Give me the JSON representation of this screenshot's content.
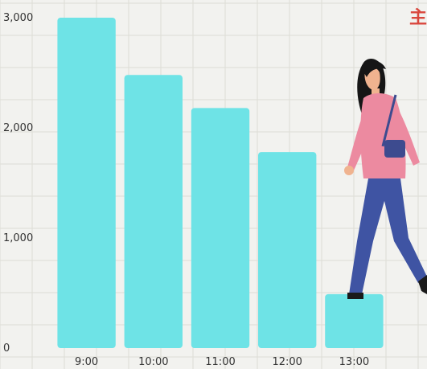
{
  "corner_text": "主",
  "colors": {
    "bar": "#6ee3e6",
    "grid": "#dcdcd6",
    "background": "#f2f2ef",
    "accent": "#d9473d"
  },
  "chart_data": {
    "type": "bar",
    "categories": [
      "9:00",
      "10:00",
      "11:00",
      "12:00",
      "13:00"
    ],
    "values": [
      3000,
      2480,
      2180,
      1780,
      490
    ],
    "title": "",
    "xlabel": "",
    "ylabel": "",
    "ylim": [
      0,
      3000
    ],
    "yticks": [
      0,
      1000,
      2000,
      3000
    ],
    "ytick_labels": [
      "0",
      "1,000",
      "2,000",
      "3,000"
    ],
    "grid": true,
    "legend": "none",
    "decoration": "illustration of a woman walking down the bars"
  }
}
